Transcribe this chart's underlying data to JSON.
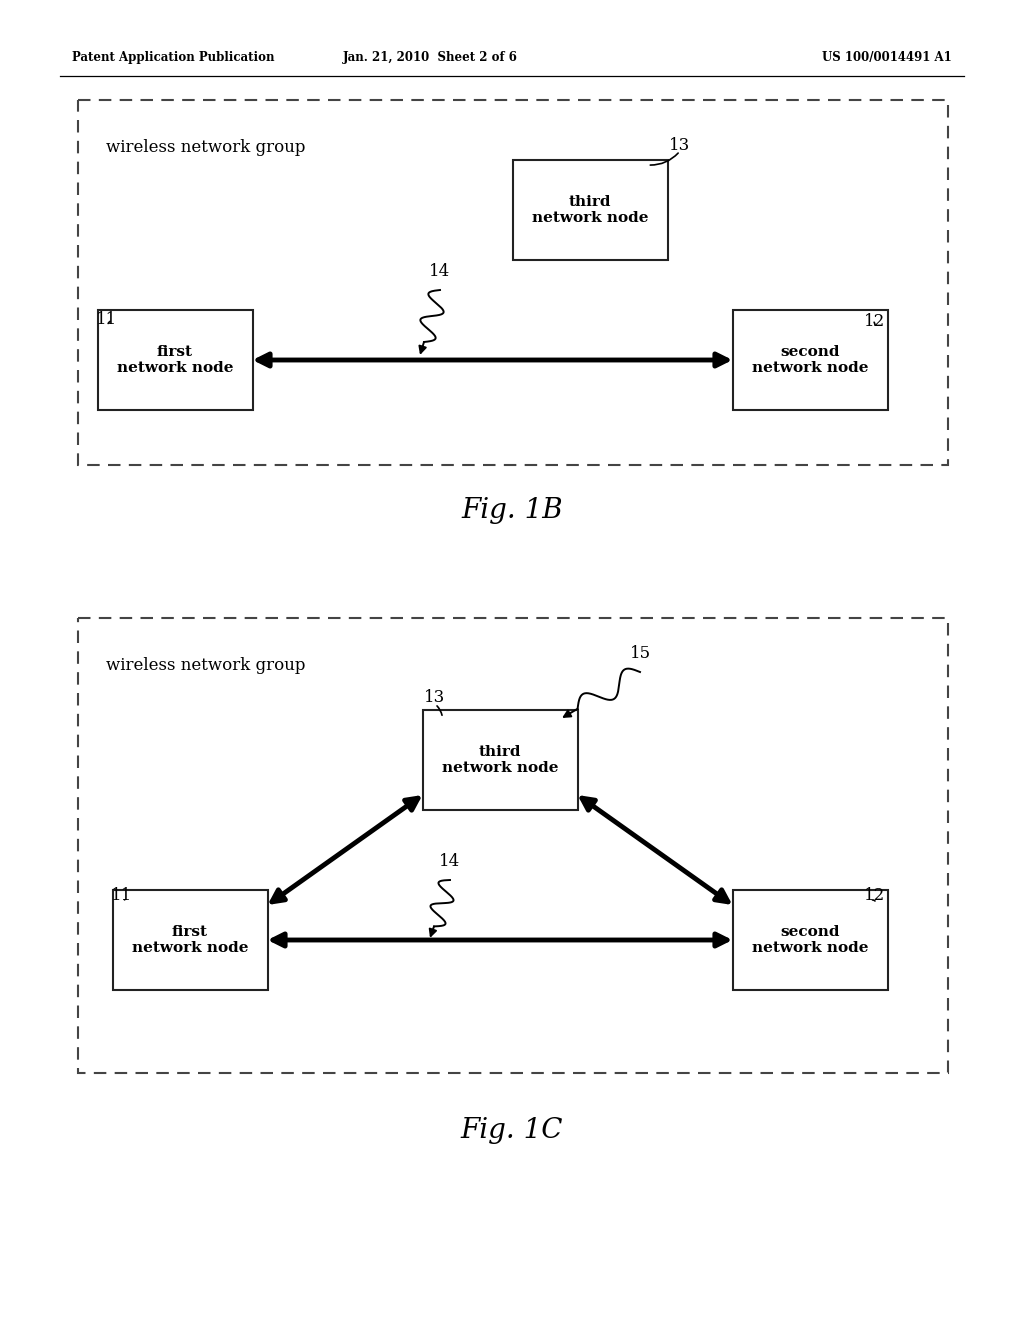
{
  "bg_color": "#ffffff",
  "header_left": "Patent Application Publication",
  "header_center": "Jan. 21, 2010  Sheet 2 of 6",
  "header_right": "US 100/0014491 A1",
  "fig1b_label": "Fig. 1B",
  "fig1c_label": "Fig. 1C",
  "wireless_group_label": "wireless network group",
  "node_first": "first\nnetwork node",
  "node_second": "second\nnetwork node",
  "node_third": "third\nnetwork node"
}
